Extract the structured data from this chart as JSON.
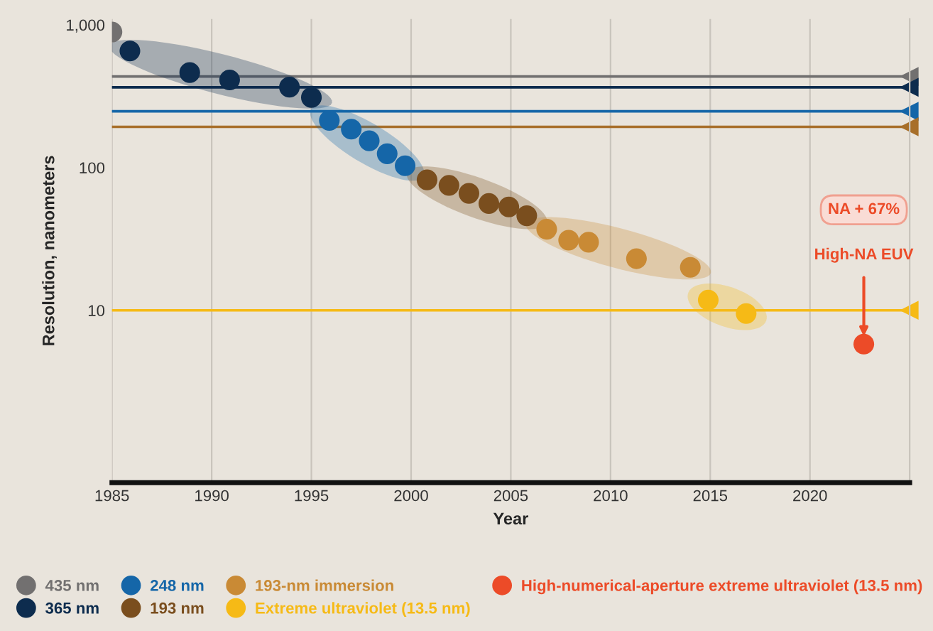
{
  "chart_data": {
    "type": "scatter",
    "xlabel": "Year",
    "ylabel": "Resolution, nanometers",
    "xlim": [
      1985,
      2025
    ],
    "xticks": [
      1985,
      1990,
      1995,
      2000,
      2005,
      2010,
      2015,
      2020
    ],
    "ylim": [
      0.62,
      1100
    ],
    "yticks": [
      10,
      100,
      {
        "value": 1000,
        "label": "1,000"
      }
    ],
    "log": true,
    "grid": "x",
    "legend": "bottom",
    "marker": "circle",
    "series": [
      {
        "name": "435 nm",
        "color": "#727070",
        "x": [
          1985.0
        ],
        "values": [
          890
        ]
      },
      {
        "name": "365 nm",
        "color": "#0d2c4e",
        "x": [
          1985.9,
          1988.9,
          1990.9,
          1993.9,
          1995.0
        ],
        "values": [
          656,
          463,
          411,
          366,
          310
        ]
      },
      {
        "name": "248 nm",
        "color": "#1566a8",
        "x": [
          1995.9,
          1997.0,
          1997.9,
          1998.8,
          1999.7
        ],
        "values": [
          214,
          186,
          154,
          125,
          103
        ]
      },
      {
        "name": "193 nm",
        "color": "#7a4e1e",
        "x": [
          2000.8,
          2001.9,
          2002.9,
          2003.9,
          2004.9,
          2005.8
        ],
        "values": [
          82,
          75,
          66,
          56,
          53,
          46
        ]
      },
      {
        "name": "193-nm immersion",
        "color": "#c98a35",
        "x": [
          2006.8,
          2007.9,
          2008.9,
          2011.3,
          2014.0
        ],
        "values": [
          37,
          31,
          30,
          23,
          20
        ]
      },
      {
        "name": "Extreme ultraviolet (13.5 nm)",
        "color": "#f6ba16",
        "x": [
          2014.9,
          2016.8
        ],
        "values": [
          11.8,
          9.5
        ]
      },
      {
        "name": "High-numerical-aperture extreme ultraviolet (13.5 nm)",
        "color": "#ec4b28",
        "x": [
          2022.7
        ],
        "values": [
          5.8
        ]
      }
    ],
    "ref_lines": [
      {
        "axis": "y",
        "value": 435,
        "color": "#727070"
      },
      {
        "axis": "y",
        "value": 365,
        "color": "#0d2c4e"
      },
      {
        "axis": "y",
        "value": 248,
        "color": "#1566a8"
      },
      {
        "axis": "y",
        "value": 193,
        "color": "#a86f2a"
      },
      {
        "axis": "y",
        "value": 10,
        "color": "#f6ba16"
      }
    ],
    "annotations": [
      "NA + 67%",
      {
        "text": "High-NA EUV",
        "x": 2022.7,
        "y": 5.8
      }
    ]
  }
}
